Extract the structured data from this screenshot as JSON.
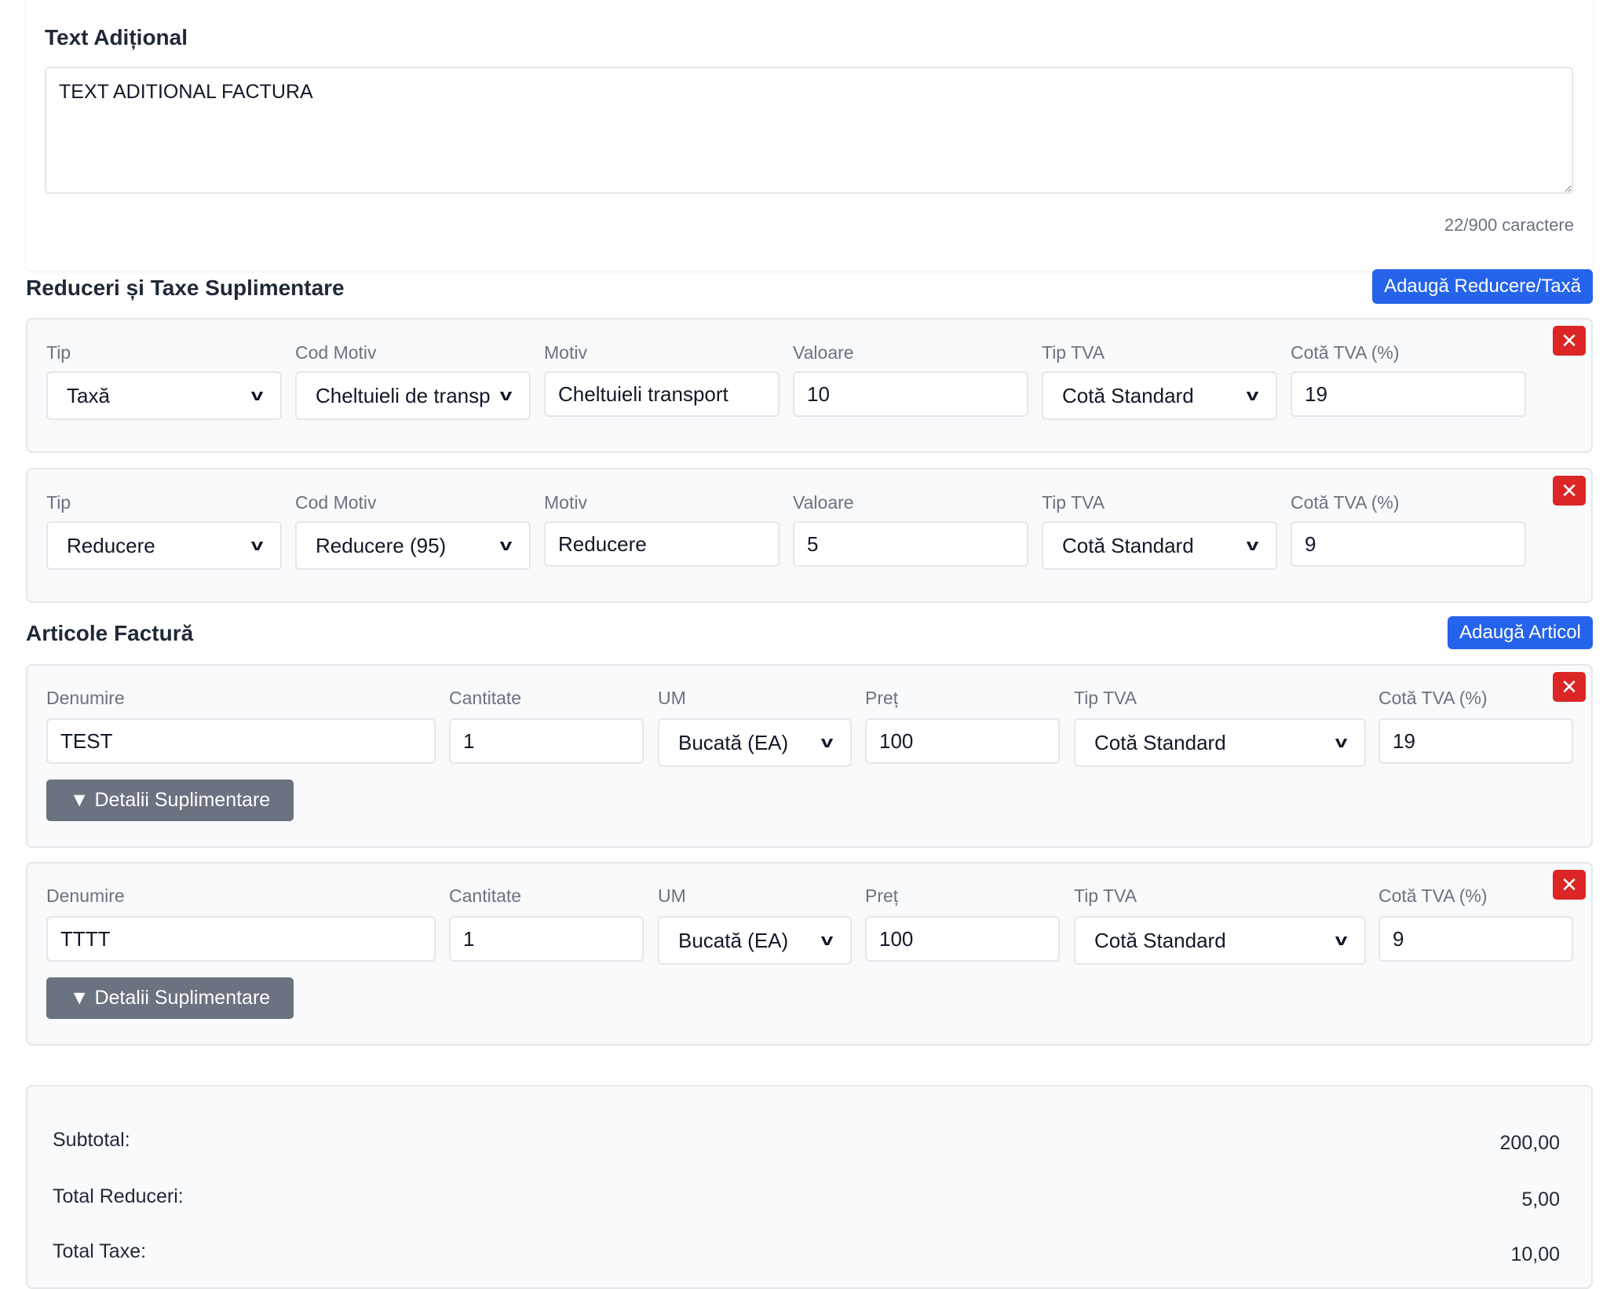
{
  "additional_text": {
    "title": "Text Adițional",
    "value": "TEXT ADITIONAL FACTURA",
    "counter": "22/900 caractere"
  },
  "allowances": {
    "title": "Reduceri și Taxe Suplimentare",
    "add_label": "Adaugă Reducere/Taxă",
    "labels": {
      "tip": "Tip",
      "cod": "Cod Motiv",
      "motiv": "Motiv",
      "valoare": "Valoare",
      "tip_tva": "Tip TVA",
      "cota": "Cotă TVA (%)"
    },
    "rows": [
      {
        "tip": "Taxă",
        "cod": "Cheltuieli de transp",
        "motiv": "Cheltuieli transport",
        "valoare": "10",
        "tip_tva": "Cotă Standard",
        "cota": "19"
      },
      {
        "tip": "Reducere",
        "cod": "Reducere (95)",
        "motiv": "Reducere",
        "valoare": "5",
        "tip_tva": "Cotă Standard",
        "cota": "9"
      }
    ]
  },
  "items": {
    "title": "Articole Factură",
    "add_label": "Adaugă Articol",
    "labels": {
      "denumire": "Denumire",
      "cantitate": "Cantitate",
      "um": "UM",
      "pret": "Preț",
      "tip_tva": "Tip TVA",
      "cota": "Cotă TVA (%)"
    },
    "details_label": "▼ Detalii Suplimentare",
    "rows": [
      {
        "denumire": "TEST",
        "cantitate": "1",
        "um": "Bucată (EA)",
        "pret": "100",
        "tip_tva": "Cotă Standard",
        "cota": "19"
      },
      {
        "denumire": "TTTT",
        "cantitate": "1",
        "um": "Bucată (EA)",
        "pret": "100",
        "tip_tva": "Cotă Standard",
        "cota": "9"
      }
    ]
  },
  "totals": {
    "subtotal_label": "Subtotal:",
    "subtotal": "200,00",
    "reduceri_label": "Total Reduceri:",
    "reduceri": "5,00",
    "taxe_label": "Total Taxe:",
    "taxe": "10,00"
  },
  "colors": {
    "primary": "#2563eb",
    "danger": "#dc2626",
    "secondary": "#6b7280"
  },
  "icons": {
    "delete": "close-icon",
    "select": "chevron-down-icon"
  }
}
